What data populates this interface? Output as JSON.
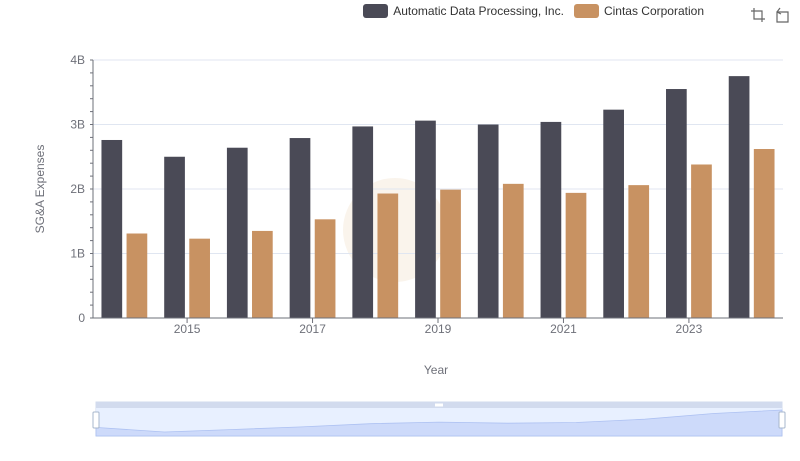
{
  "legend": {
    "items": [
      {
        "label": "Automatic Data Processing, Inc.",
        "color": "#4a4a56"
      },
      {
        "label": "Cintas Corporation",
        "color": "#c89262"
      }
    ]
  },
  "toolbox": {
    "icons": [
      "zoom-icon",
      "restore-icon"
    ]
  },
  "chart_data": {
    "type": "bar",
    "x": [
      2014,
      2015,
      2016,
      2017,
      2018,
      2019,
      2020,
      2021,
      2022,
      2023,
      2024
    ],
    "x_tick_labels": [
      "2015",
      "2017",
      "2019",
      "2021",
      "2023"
    ],
    "y_tick_labels": [
      "0",
      "1B",
      "2B",
      "3B",
      "4B"
    ],
    "ylim": [
      0,
      4000000000
    ],
    "xlabel": "Year",
    "ylabel": "SG&A Expenses",
    "grid": true,
    "legend_position": "top-right",
    "series": [
      {
        "name": "Automatic Data Processing, Inc.",
        "color": "#4a4a56",
        "values": [
          2760000000,
          2500000000,
          2640000000,
          2790000000,
          2970000000,
          3060000000,
          3000000000,
          3040000000,
          3230000000,
          3550000000,
          3750000000
        ]
      },
      {
        "name": "Cintas Corporation",
        "color": "#c89262",
        "values": [
          1310000000,
          1230000000,
          1350000000,
          1530000000,
          1930000000,
          1990000000,
          2080000000,
          1940000000,
          2060000000,
          2380000000,
          2620000000
        ]
      }
    ],
    "data_zoom": {
      "start": 0,
      "end": 100
    }
  }
}
